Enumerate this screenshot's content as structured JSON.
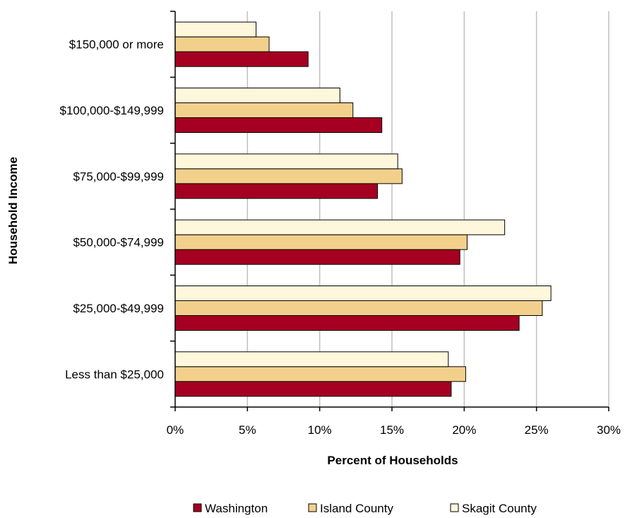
{
  "chart_data": {
    "type": "bar",
    "orientation": "horizontal",
    "categories": [
      "Less than $25,000",
      "$25,000-$49,999",
      "$50,000-$74,999",
      "$75,000-$99,999",
      "$100,000-$149,999",
      "$150,000 or more"
    ],
    "series": [
      {
        "name": "Washington",
        "color": "#a50021",
        "values": [
          19.1,
          23.8,
          19.7,
          14.0,
          14.3,
          9.2
        ]
      },
      {
        "name": "Island County",
        "color": "#f2d08c",
        "values": [
          20.1,
          25.4,
          20.2,
          15.7,
          12.3,
          6.5
        ]
      },
      {
        "name": "Skagit County",
        "color": "#fff7dc",
        "values": [
          18.9,
          26.0,
          22.8,
          15.4,
          11.4,
          5.6
        ]
      }
    ],
    "xlabel": "Percent of Households",
    "ylabel": "Household Income",
    "xlim": [
      0,
      30
    ],
    "xticks": [
      "0%",
      "5%",
      "10%",
      "15%",
      "20%",
      "25%",
      "30%"
    ],
    "grid": "vertical",
    "legend": "bottom"
  }
}
